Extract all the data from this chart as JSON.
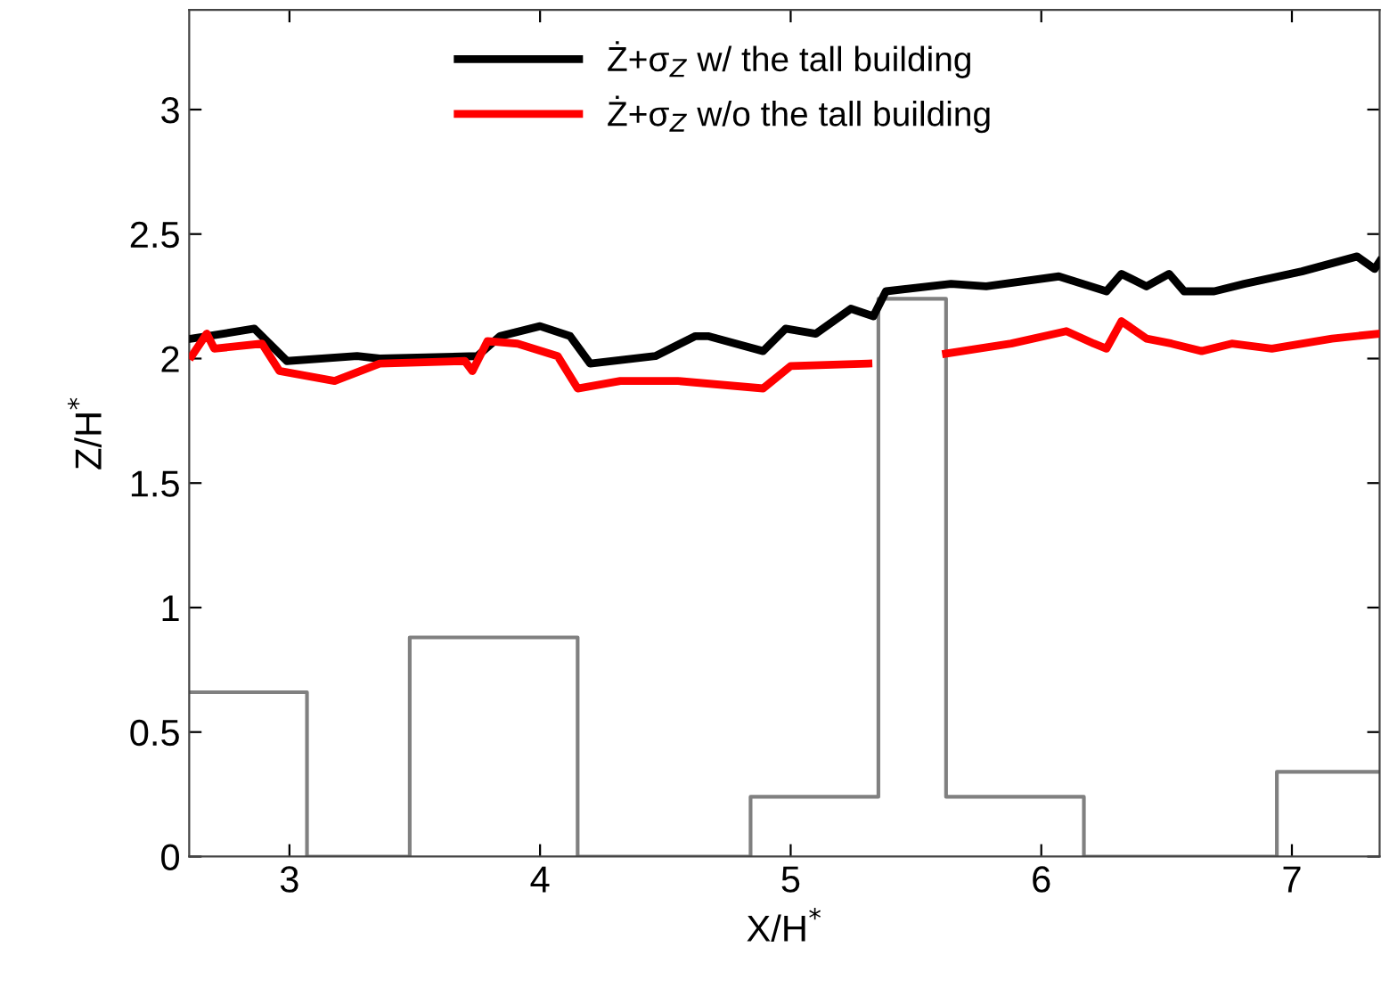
{
  "chart_data": {
    "type": "line",
    "xlabel": "X/H$^{*}$",
    "ylabel": "Z/H$^{*}$",
    "xlim": [
      2.6,
      7.35
    ],
    "ylim": [
      0,
      3.4
    ],
    "xticks": [
      3,
      4,
      5,
      6,
      7
    ],
    "yticks": [
      0,
      0.5,
      1,
      1.5,
      2,
      2.5,
      3
    ],
    "grid": false,
    "legend": "top",
    "marker": "none",
    "line_style": "solid",
    "series": [
      {
        "name": "Ż+σ$_{Z}$ w/ the tall building",
        "color": "#000000",
        "x": [
          2.61,
          2.86,
          2.99,
          3.27,
          3.36,
          3.75,
          3.84,
          4.0,
          4.12,
          4.2,
          4.46,
          4.62,
          4.67,
          4.89,
          4.98,
          5.1,
          5.24,
          5.33,
          5.38,
          5.64,
          5.78,
          6.07,
          6.26,
          6.32,
          6.42,
          6.51,
          6.57,
          6.69,
          6.81,
          7.04,
          7.26,
          7.33,
          7.35
        ],
        "values": [
          2.08,
          2.12,
          1.99,
          2.01,
          2.0,
          2.01,
          2.09,
          2.13,
          2.09,
          1.98,
          2.01,
          2.09,
          2.09,
          2.03,
          2.12,
          2.1,
          2.2,
          2.17,
          2.27,
          2.3,
          2.29,
          2.33,
          2.27,
          2.34,
          2.29,
          2.34,
          2.27,
          2.27,
          2.3,
          2.35,
          2.41,
          2.36,
          2.39
        ]
      },
      {
        "name": "Ż+σ$_{Z}$ w/o the tall building",
        "color": "#ff0000",
        "x": [
          2.61,
          2.67,
          2.7,
          2.89,
          2.96,
          3.18,
          3.36,
          3.7,
          3.73,
          3.79,
          3.91,
          4.07,
          4.15,
          4.32,
          4.55,
          4.89,
          5.0,
          5.31,
          5.45,
          5.62,
          5.88,
          6.1,
          6.21,
          6.26,
          6.32,
          6.42,
          6.52,
          6.64,
          6.76,
          6.92,
          7.16,
          7.35
        ],
        "values": [
          2.01,
          2.1,
          2.04,
          2.06,
          1.95,
          1.91,
          1.98,
          1.99,
          1.95,
          2.07,
          2.06,
          2.01,
          1.88,
          1.91,
          1.91,
          1.88,
          1.97,
          1.98,
          null,
          2.02,
          2.06,
          2.11,
          2.06,
          2.04,
          2.15,
          2.08,
          2.06,
          2.03,
          2.06,
          2.04,
          2.08,
          2.1
        ]
      },
      {
        "color": "#808080",
        "x": [
          2.6,
          3.07,
          3.07,
          3.48,
          3.48,
          4.15,
          4.15,
          4.84,
          4.84,
          5.35,
          5.35,
          5.62,
          5.62,
          6.17,
          6.17,
          6.94,
          6.94,
          7.35
        ],
        "values": [
          0.66,
          0.66,
          0,
          0,
          0.88,
          0.88,
          0,
          0,
          0.24,
          0.24,
          2.24,
          2.24,
          0.24,
          0.24,
          0,
          0,
          0.34,
          0.34
        ]
      }
    ]
  }
}
